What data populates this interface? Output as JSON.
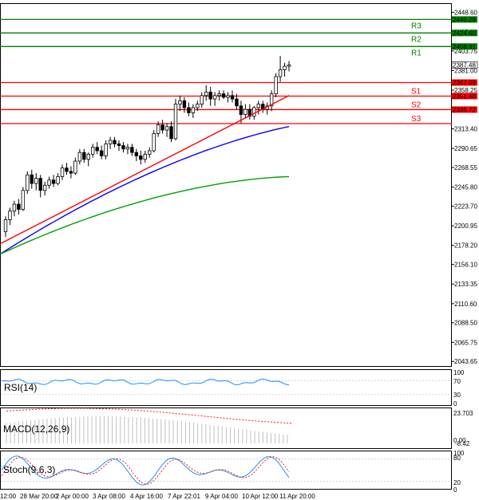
{
  "chart_data": {
    "type": "candlestick",
    "price_axis": {
      "ticks": [
        "2448.60",
        "2425.80",
        "2403.75",
        "2381.00",
        "2358.25",
        "2335.50",
        "2313.40",
        "2290.65",
        "2268.55",
        "2245.80",
        "2223.70",
        "2200.95",
        "2178.20",
        "2156.10",
        "2133.35",
        "2110.60",
        "2088.50",
        "2065.75",
        "2043.65"
      ],
      "range": [
        2038.3,
        2458.2
      ],
      "current_price": "2387.48"
    },
    "levels": [
      {
        "name": "R3",
        "value": "2440.28",
        "color": "#008000"
      },
      {
        "name": "R2",
        "value": "2424.60",
        "color": "#008000"
      },
      {
        "name": "R1",
        "value": "2408.91",
        "color": "#008000"
      },
      {
        "name": "",
        "value": "2367.09",
        "color": "#ff0000"
      },
      {
        "name": "S1",
        "value": "2351.40",
        "color": "#ff0000"
      },
      {
        "name": "S2",
        "value": "2335.72",
        "color": "#ff0000"
      },
      {
        "name": "S3",
        "value": "",
        "color": "#ff0000"
      }
    ],
    "x_labels": [
      "12:00",
      "28 Mar 20:00",
      "2 Apr 00:00",
      "3 Apr 08:00",
      "4 Apr 16:00",
      "7 Apr 22:01",
      "9 Apr 04:00",
      "10 Apr 12:00",
      "11 Apr 20:00"
    ],
    "candles": [
      [
        2194,
        2212,
        2188,
        2208
      ],
      [
        2208,
        2222,
        2202,
        2218
      ],
      [
        2218,
        2230,
        2212,
        2226
      ],
      [
        2226,
        2232,
        2214,
        2220
      ],
      [
        2220,
        2246,
        2218,
        2242
      ],
      [
        2242,
        2264,
        2238,
        2260
      ],
      [
        2260,
        2266,
        2244,
        2250
      ],
      [
        2250,
        2262,
        2242,
        2256
      ],
      [
        2256,
        2260,
        2234,
        2242
      ],
      [
        2242,
        2252,
        2236,
        2248
      ],
      [
        2248,
        2258,
        2244,
        2254
      ],
      [
        2254,
        2260,
        2246,
        2250
      ],
      [
        2250,
        2262,
        2248,
        2258
      ],
      [
        2258,
        2272,
        2254,
        2268
      ],
      [
        2268,
        2274,
        2260,
        2264
      ],
      [
        2264,
        2270,
        2256,
        2262
      ],
      [
        2262,
        2280,
        2260,
        2276
      ],
      [
        2276,
        2290,
        2272,
        2286
      ],
      [
        2286,
        2290,
        2274,
        2278
      ],
      [
        2278,
        2286,
        2270,
        2284
      ],
      [
        2284,
        2296,
        2280,
        2292
      ],
      [
        2292,
        2298,
        2284,
        2288
      ],
      [
        2288,
        2294,
        2278,
        2282
      ],
      [
        2282,
        2300,
        2278,
        2296
      ],
      [
        2296,
        2304,
        2290,
        2300
      ],
      [
        2300,
        2304,
        2292,
        2296
      ],
      [
        2296,
        2300,
        2288,
        2294
      ],
      [
        2294,
        2298,
        2286,
        2290
      ],
      [
        2290,
        2296,
        2284,
        2292
      ],
      [
        2292,
        2296,
        2282,
        2286
      ],
      [
        2286,
        2290,
        2276,
        2282
      ],
      [
        2282,
        2288,
        2272,
        2278
      ],
      [
        2278,
        2288,
        2274,
        2284
      ],
      [
        2284,
        2292,
        2280,
        2288
      ],
      [
        2288,
        2312,
        2286,
        2308
      ],
      [
        2308,
        2322,
        2304,
        2318
      ],
      [
        2318,
        2324,
        2308,
        2312
      ],
      [
        2312,
        2320,
        2304,
        2316
      ],
      [
        2316,
        2322,
        2298,
        2302
      ],
      [
        2302,
        2348,
        2300,
        2342
      ],
      [
        2342,
        2352,
        2334,
        2346
      ],
      [
        2346,
        2350,
        2332,
        2338
      ],
      [
        2338,
        2344,
        2328,
        2332
      ],
      [
        2332,
        2342,
        2326,
        2338
      ],
      [
        2338,
        2346,
        2334,
        2342
      ],
      [
        2342,
        2356,
        2338,
        2352
      ],
      [
        2352,
        2364,
        2346,
        2356
      ],
      [
        2356,
        2362,
        2340,
        2348
      ],
      [
        2348,
        2356,
        2340,
        2352
      ],
      [
        2352,
        2358,
        2346,
        2354
      ],
      [
        2354,
        2358,
        2348,
        2350
      ],
      [
        2350,
        2356,
        2344,
        2352
      ],
      [
        2352,
        2358,
        2344,
        2348
      ],
      [
        2348,
        2354,
        2336,
        2340
      ],
      [
        2340,
        2346,
        2320,
        2330
      ],
      [
        2330,
        2342,
        2326,
        2336
      ],
      [
        2336,
        2342,
        2324,
        2328
      ],
      [
        2328,
        2340,
        2324,
        2338
      ],
      [
        2338,
        2346,
        2330,
        2342
      ],
      [
        2342,
        2346,
        2332,
        2336
      ],
      [
        2336,
        2344,
        2330,
        2340
      ],
      [
        2340,
        2358,
        2334,
        2354
      ],
      [
        2354,
        2378,
        2350,
        2374
      ],
      [
        2374,
        2398,
        2368,
        2382
      ],
      [
        2382,
        2390,
        2374,
        2386
      ],
      [
        2386,
        2392,
        2380,
        2387.48
      ]
    ],
    "moving_averages": [
      {
        "color": "#ff0000",
        "start": 2180,
        "end": 2352
      },
      {
        "color": "#0000ff",
        "start": 2168,
        "end": 2316
      },
      {
        "color": "#00a000",
        "start": 2168,
        "end": 2258
      }
    ],
    "indicators": [
      {
        "label": "RSI(14)",
        "scale": [
          "100",
          "70",
          "30",
          "0"
        ]
      },
      {
        "label": "MACD(12,26,9)",
        "scale": [
          "23.703",
          "0.00",
          "-8.42"
        ]
      },
      {
        "label": "Stoch(9,6,3)",
        "scale": [
          "100",
          "80",
          "20",
          "0"
        ]
      }
    ]
  }
}
